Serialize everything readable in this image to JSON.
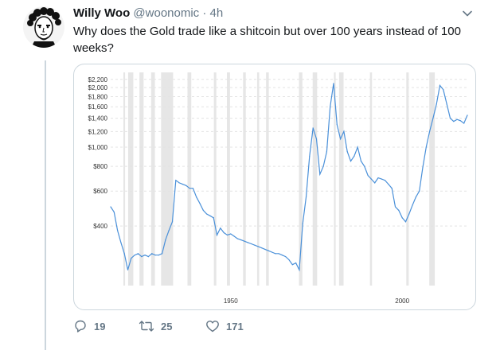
{
  "tweet": {
    "author_name": "Willy Woo",
    "handle": "@woonomic",
    "separator": "·",
    "timestamp": "4h",
    "text": "Why does the Gold trade like a shitcoin but over 100 years instead of 100 weeks?"
  },
  "actions": {
    "replies": "19",
    "retweets": "25",
    "likes": "171"
  },
  "icons": {
    "avatar": "avatar-portrait",
    "menu": "chevron-down-icon",
    "reply": "reply-icon",
    "retweet": "retweet-icon",
    "like": "heart-icon"
  },
  "colors": {
    "line": "#4a90d9",
    "recession_band": "#e6e6e6",
    "muted_text": "#657786"
  },
  "chart_data": {
    "type": "line",
    "title": "",
    "xlabel": "",
    "ylabel": "",
    "y_scale": "log",
    "xlim": [
      1915,
      2019
    ],
    "ylim": [
      200,
      2300
    ],
    "x_tick_labels": [
      "1950",
      "2000"
    ],
    "x_ticks": [
      1950,
      2000
    ],
    "y_ticks": [
      400,
      600,
      800,
      1000,
      1200,
      1400,
      1600,
      1800,
      2000,
      2200
    ],
    "y_tick_labels": [
      "$400",
      "$600",
      "$800",
      "$1,000",
      "$1,200",
      "$1,400",
      "$1,600",
      "$1,800",
      "$2,000",
      "$2,200"
    ],
    "grid": true,
    "recession_bands": [
      [
        1918.7,
        1919.2
      ],
      [
        1920.1,
        1921.6
      ],
      [
        1923.4,
        1924.6
      ],
      [
        1926.8,
        1927.9
      ],
      [
        1929.7,
        1933.2
      ],
      [
        1937.4,
        1938.5
      ],
      [
        1945.1,
        1945.8
      ],
      [
        1948.9,
        1949.8
      ],
      [
        1953.6,
        1954.4
      ],
      [
        1957.7,
        1958.3
      ],
      [
        1960.3,
        1961.1
      ],
      [
        1969.9,
        1970.9
      ],
      [
        1973.9,
        1975.2
      ],
      [
        1980.1,
        1980.6
      ],
      [
        1981.6,
        1982.9
      ],
      [
        1990.6,
        1991.2
      ],
      [
        2001.2,
        2001.9
      ],
      [
        2007.9,
        2009.5
      ]
    ],
    "series": [
      {
        "x": [
          1915,
          1916,
          1917,
          1918,
          1919,
          1920,
          1921,
          1922,
          1923,
          1924,
          1925,
          1926,
          1927,
          1928,
          1929,
          1930,
          1931,
          1932,
          1933,
          1934,
          1935,
          1936,
          1937,
          1938,
          1939,
          1940,
          1941,
          1942,
          1943,
          1944,
          1945,
          1946,
          1947,
          1948,
          1949,
          1950,
          1951,
          1952,
          1953,
          1954,
          1955,
          1956,
          1957,
          1958,
          1959,
          1960,
          1961,
          1962,
          1963,
          1964,
          1965,
          1966,
          1967,
          1968,
          1969,
          1970,
          1971,
          1972,
          1973,
          1974,
          1975,
          1976,
          1977,
          1978,
          1979,
          1980,
          1981,
          1982,
          1983,
          1984,
          1985,
          1986,
          1987,
          1988,
          1989,
          1990,
          1991,
          1992,
          1993,
          1994,
          1995,
          1996,
          1997,
          1998,
          1999,
          2000,
          2001,
          2002,
          2003,
          2004,
          2005,
          2006,
          2007,
          2008,
          2009,
          2010,
          2011,
          2012,
          2013,
          2014,
          2015,
          2016,
          2017,
          2018,
          2019
        ],
        "y": [
          500,
          470,
          380,
          330,
          290,
          240,
          275,
          285,
          290,
          280,
          285,
          280,
          290,
          285,
          285,
          290,
          340,
          380,
          420,
          680,
          660,
          650,
          640,
          620,
          620,
          560,
          520,
          480,
          460,
          450,
          440,
          360,
          390,
          370,
          360,
          365,
          355,
          345,
          340,
          335,
          330,
          325,
          320,
          315,
          310,
          305,
          300,
          295,
          290,
          290,
          285,
          280,
          270,
          255,
          260,
          240,
          410,
          560,
          900,
          1250,
          1100,
          730,
          800,
          950,
          1600,
          2100,
          1300,
          1100,
          1200,
          950,
          850,
          900,
          1000,
          850,
          800,
          720,
          690,
          660,
          700,
          690,
          680,
          650,
          620,
          500,
          480,
          440,
          420,
          460,
          510,
          560,
          600,
          790,
          1000,
          1200,
          1400,
          1650,
          2050,
          1950,
          1650,
          1400,
          1350,
          1380,
          1360,
          1320,
          1450
        ]
      }
    ]
  }
}
